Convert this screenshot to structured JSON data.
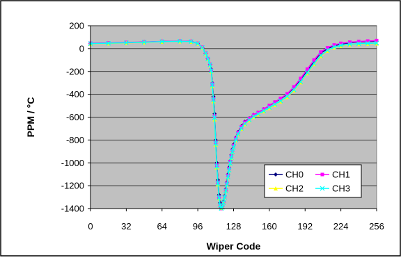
{
  "chart_data": {
    "type": "line",
    "title": "",
    "xlabel": "Wiper Code",
    "ylabel": "PPM / °C",
    "xlim": [
      0,
      256
    ],
    "ylim": [
      -1400,
      200
    ],
    "x_ticks": [
      0,
      32,
      64,
      96,
      128,
      160,
      192,
      224,
      256
    ],
    "y_ticks": [
      200,
      0,
      -200,
      -400,
      -600,
      -800,
      -1000,
      -1200,
      -1400
    ],
    "x_tick_labels": [
      "0",
      "32",
      "64",
      "96",
      "128",
      "160",
      "192",
      "224",
      "256"
    ],
    "y_tick_labels": [
      "200",
      "0",
      "-200",
      "-400",
      "-600",
      "-800",
      "-1000",
      "-1200",
      "-1400"
    ],
    "grid": "horizontal",
    "plot_background": "#c0c0c0",
    "legend_position": "bottom-right",
    "series": [
      {
        "name": "CH0",
        "color": "#000080",
        "marker": "diamond",
        "x": [
          0,
          16,
          32,
          48,
          64,
          80,
          90,
          96,
          100,
          103,
          105,
          107,
          108,
          109,
          110,
          111,
          112,
          113,
          114,
          115,
          116,
          117,
          118,
          119,
          120,
          121,
          122,
          123,
          124,
          125,
          126,
          127,
          128,
          130,
          132,
          135,
          138,
          142,
          146,
          150,
          155,
          160,
          165,
          170,
          176,
          182,
          188,
          194,
          200,
          206,
          212,
          218,
          224,
          232,
          240,
          248,
          256
        ],
        "y": [
          45,
          48,
          52,
          57,
          62,
          65,
          62,
          45,
          10,
          -40,
          -90,
          -140,
          -180,
          -300,
          -420,
          -570,
          -800,
          -1000,
          -1150,
          -1280,
          -1350,
          -1390,
          -1380,
          -1340,
          -1290,
          -1230,
          -1170,
          -1100,
          -1040,
          -980,
          -930,
          -880,
          -840,
          -780,
          -730,
          -680,
          -640,
          -610,
          -580,
          -560,
          -530,
          -500,
          -470,
          -440,
          -400,
          -340,
          -270,
          -190,
          -110,
          -40,
          0,
          25,
          40,
          52,
          58,
          62,
          65
        ]
      },
      {
        "name": "CH1",
        "color": "#ff00ff",
        "marker": "square",
        "x": [
          0,
          16,
          32,
          48,
          64,
          80,
          90,
          96,
          100,
          103,
          105,
          107,
          108,
          109,
          110,
          111,
          112,
          113,
          114,
          115,
          116,
          117,
          118,
          119,
          120,
          121,
          122,
          123,
          124,
          125,
          126,
          127,
          128,
          130,
          132,
          135,
          138,
          142,
          146,
          150,
          155,
          160,
          165,
          170,
          176,
          182,
          188,
          194,
          200,
          206,
          212,
          218,
          224,
          232,
          240,
          248,
          256
        ],
        "y": [
          47,
          50,
          54,
          58,
          63,
          66,
          63,
          46,
          12,
          -38,
          -88,
          -138,
          -190,
          -310,
          -440,
          -590,
          -820,
          -1020,
          -1170,
          -1300,
          -1370,
          -1400,
          -1390,
          -1350,
          -1300,
          -1240,
          -1180,
          -1110,
          -1050,
          -990,
          -940,
          -890,
          -850,
          -785,
          -735,
          -685,
          -645,
          -612,
          -582,
          -560,
          -530,
          -498,
          -468,
          -436,
          -395,
          -335,
          -262,
          -180,
          -100,
          -30,
          8,
          32,
          46,
          56,
          62,
          66,
          70
        ]
      },
      {
        "name": "CH2",
        "color": "#ffff00",
        "marker": "triangle",
        "x": [
          0,
          16,
          32,
          48,
          64,
          80,
          90,
          96,
          100,
          103,
          105,
          107,
          108,
          109,
          110,
          111,
          112,
          113,
          114,
          115,
          116,
          117,
          118,
          119,
          120,
          121,
          122,
          123,
          124,
          125,
          126,
          127,
          128,
          130,
          132,
          135,
          138,
          142,
          146,
          150,
          155,
          160,
          165,
          170,
          176,
          182,
          188,
          194,
          200,
          206,
          212,
          218,
          224,
          232,
          240,
          248,
          256
        ],
        "y": [
          43,
          46,
          50,
          55,
          60,
          63,
          60,
          44,
          8,
          -42,
          -92,
          -142,
          -200,
          -330,
          -460,
          -620,
          -840,
          -1040,
          -1190,
          -1310,
          -1370,
          -1395,
          -1385,
          -1345,
          -1300,
          -1245,
          -1190,
          -1125,
          -1065,
          -1005,
          -955,
          -905,
          -865,
          -800,
          -750,
          -700,
          -660,
          -628,
          -598,
          -575,
          -548,
          -520,
          -492,
          -462,
          -422,
          -365,
          -295,
          -215,
          -135,
          -65,
          -18,
          10,
          25,
          35,
          40,
          43,
          45
        ]
      },
      {
        "name": "CH3",
        "color": "#00ffff",
        "marker": "x",
        "x": [
          0,
          16,
          32,
          48,
          64,
          80,
          90,
          96,
          100,
          103,
          105,
          107,
          108,
          109,
          110,
          111,
          112,
          113,
          114,
          115,
          116,
          117,
          118,
          119,
          120,
          121,
          122,
          123,
          124,
          125,
          126,
          127,
          128,
          130,
          132,
          135,
          138,
          142,
          146,
          150,
          155,
          160,
          165,
          170,
          176,
          182,
          188,
          194,
          200,
          206,
          212,
          218,
          224,
          232,
          240,
          248,
          256
        ],
        "y": [
          44,
          47,
          51,
          56,
          61,
          64,
          61,
          44,
          9,
          -41,
          -91,
          -141,
          -195,
          -320,
          -450,
          -605,
          -830,
          -1030,
          -1180,
          -1305,
          -1372,
          -1398,
          -1388,
          -1348,
          -1302,
          -1246,
          -1190,
          -1124,
          -1064,
          -1004,
          -954,
          -904,
          -864,
          -798,
          -748,
          -698,
          -657,
          -625,
          -595,
          -572,
          -545,
          -516,
          -488,
          -458,
          -418,
          -360,
          -290,
          -210,
          -130,
          -60,
          -14,
          14,
          28,
          38,
          43,
          46,
          48
        ]
      }
    ]
  }
}
